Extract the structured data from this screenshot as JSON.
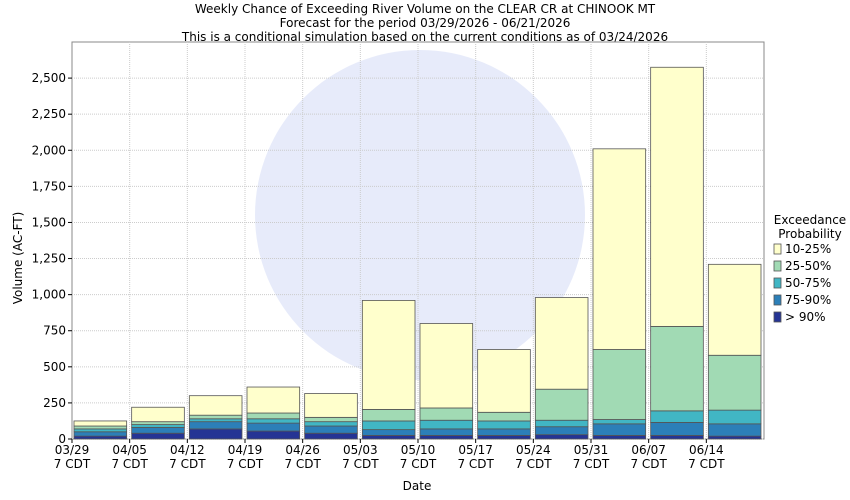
{
  "chart_data": {
    "type": "stacked_bar",
    "title": "Weekly Chance of Exceeding River Volume on the CLEAR CR at CHINOOK MT\nForecast for the period 03/29/2026 - 06/21/2026\nThis is a conditional simulation based on the current conditions as of 03/24/2026",
    "xlabel": "Date",
    "ylabel": "Volume (AC-FT)",
    "legend_title": "Exceedance\nProbability",
    "legend_position": "right",
    "grid": true,
    "categories": [
      "03/29\n7 CDT",
      "04/05\n7 CDT",
      "04/12\n7 CDT",
      "04/19\n7 CDT",
      "04/26\n7 CDT",
      "05/03\n7 CDT",
      "05/10\n7 CDT",
      "05/17\n7 CDT",
      "05/24\n7 CDT",
      "05/31\n7 CDT",
      "06/07\n7 CDT",
      "06/14\n7 CDT"
    ],
    "ylim": [
      0,
      2750
    ],
    "yticks": [
      0,
      250,
      500,
      750,
      {
        "value": 1000,
        "label": "1,000"
      },
      {
        "value": 1250,
        "label": "1,250"
      },
      {
        "value": 1500,
        "label": "1,500"
      },
      {
        "value": 1750,
        "label": "1,750"
      },
      {
        "value": 2000,
        "label": "2,000"
      },
      {
        "value": 2250,
        "label": "2,250"
      },
      {
        "value": 2500,
        "label": "2,500"
      }
    ],
    "series": [
      {
        "name": "> 90%",
        "color": "#253494",
        "values": [
          20,
          40,
          70,
          55,
          40,
          25,
          25,
          25,
          30,
          25,
          25,
          20
        ]
      },
      {
        "name": "75-90%",
        "color": "#2c7fb8",
        "values": [
          30,
          40,
          50,
          55,
          50,
          40,
          45,
          45,
          55,
          80,
          90,
          85
        ]
      },
      {
        "name": "50-75%",
        "color": "#41b6c4",
        "values": [
          20,
          20,
          20,
          30,
          30,
          60,
          60,
          55,
          45,
          30,
          80,
          95
        ]
      },
      {
        "name": "25-50%",
        "color": "#a1dab4",
        "values": [
          20,
          20,
          25,
          40,
          30,
          80,
          85,
          60,
          215,
          485,
          585,
          380
        ]
      },
      {
        "name": "10-25%",
        "color": "#ffffcc",
        "values": [
          35,
          100,
          135,
          180,
          165,
          755,
          585,
          435,
          635,
          1390,
          1795,
          630
        ]
      }
    ]
  }
}
